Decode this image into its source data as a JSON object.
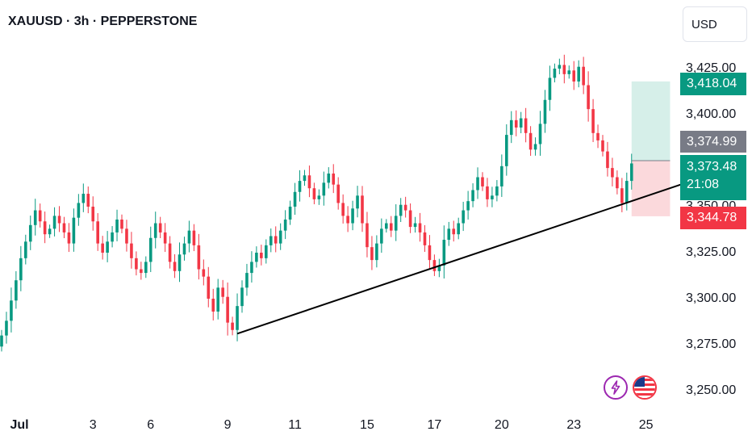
{
  "header": {
    "symbol_title": "XAUUSD · 3h · PEPPERSTONE",
    "currency_label": "USD"
  },
  "colors": {
    "up": "#089981",
    "down": "#f23645",
    "trendline": "#000000",
    "profit_zone": "#d6efe9",
    "loss_zone": "#fbd9dc",
    "entry_tag": "#787b86",
    "tp_tag": "#089981",
    "sl_tag": "#f23645",
    "current_tag": "#089981"
  },
  "icons": {
    "lightning": "lightning-icon",
    "flag": "us-flag-icon"
  },
  "tags": {
    "take_profit": "3,418.04",
    "entry": "3,374.99",
    "current_price": "3,373.48",
    "countdown": "21:08",
    "stop_loss": "3,344.78"
  },
  "chart_data": {
    "type": "candlestick",
    "title": "XAUUSD · 3h · PEPPERSTONE",
    "ylim": [
      3240,
      3440
    ],
    "y_ticks": [
      "3,425.00",
      "3,400.00",
      "3,375.00",
      "3,350.00",
      "3,325.00",
      "3,300.00",
      "3,275.00",
      "3,250.00"
    ],
    "y_tick_values": [
      3425,
      3400,
      3375,
      3350,
      3325,
      3300,
      3275,
      3250
    ],
    "x_ticks": [
      {
        "label": "Jul",
        "bar": 0
      },
      {
        "label": "3",
        "bar": 19
      },
      {
        "label": "6",
        "bar": 31
      },
      {
        "label": "9",
        "bar": 47
      },
      {
        "label": "11",
        "bar": 61
      },
      {
        "label": "15",
        "bar": 76
      },
      {
        "label": "17",
        "bar": 90
      },
      {
        "label": "20",
        "bar": 104
      },
      {
        "label": "23",
        "bar": 119
      },
      {
        "label": "25",
        "bar": 134
      }
    ],
    "trendline": {
      "from": {
        "bar": 49,
        "price": 3281
      },
      "to": {
        "bar": 143.5,
        "price": 3364
      }
    },
    "position": {
      "start_bar": 131,
      "end_bar": 139,
      "entry": 3374.99,
      "take_profit": 3418.04,
      "stop_loss": 3344.78
    },
    "closes": [
      3280,
      3288,
      3299,
      3310,
      3322,
      3331,
      3340,
      3348,
      3342,
      3335,
      3338,
      3345,
      3341,
      3336,
      3330,
      3344,
      3352,
      3357,
      3350,
      3342,
      3330,
      3325,
      3331,
      3336,
      3343,
      3338,
      3330,
      3322,
      3316,
      3314,
      3320,
      3333,
      3341,
      3336,
      3330,
      3320,
      3315,
      3324,
      3330,
      3337,
      3329,
      3316,
      3312,
      3300,
      3293,
      3306,
      3301,
      3287,
      3283,
      3296,
      3306,
      3314,
      3320,
      3325,
      3322,
      3329,
      3334,
      3330,
      3337,
      3343,
      3350,
      3358,
      3364,
      3367,
      3360,
      3354,
      3356,
      3363,
      3368,
      3362,
      3352,
      3345,
      3341,
      3349,
      3356,
      3341,
      3328,
      3321,
      3330,
      3338,
      3341,
      3337,
      3345,
      3351,
      3348,
      3339,
      3341,
      3336,
      3329,
      3321,
      3315,
      3318,
      3332,
      3338,
      3335,
      3341,
      3348,
      3353,
      3359,
      3366,
      3361,
      3354,
      3356,
      3361,
      3372,
      3389,
      3397,
      3393,
      3398,
      3390,
      3381,
      3384,
      3395,
      3408,
      3420,
      3425,
      3427,
      3422,
      3424,
      3418,
      3426,
      3416,
      3403,
      3390,
      3386,
      3380,
      3371,
      3366,
      3360,
      3352,
      3364,
      3373.48
    ]
  }
}
